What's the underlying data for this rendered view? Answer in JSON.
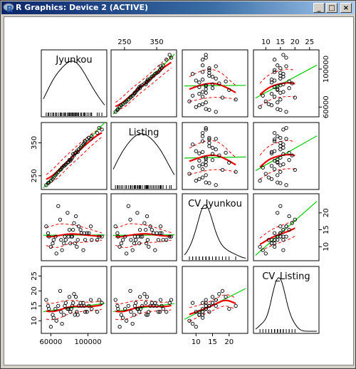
{
  "window": {
    "title": "R Graphics: Device 2 (ACTIVE)",
    "icon": "r-logo-icon",
    "buttons": {
      "minimize": "_",
      "maximize": "□",
      "close": "×"
    },
    "button_icons": [
      "minimize-icon",
      "maximize-icon",
      "close-icon"
    ]
  },
  "chart_data": {
    "type": "scatter",
    "title": "",
    "variables": [
      {
        "name": "Jyunkou",
        "ticks": [
          60000,
          100000
        ],
        "axis_tick_labels": [
          "60000",
          "100000"
        ],
        "range": [
          52000,
          118000
        ],
        "values": [
          104000,
          99000,
          95000,
          112000,
          90000,
          86000,
          83000,
          80000,
          78000,
          76000,
          88000,
          93000,
          85000,
          82000,
          74000,
          72000,
          84000,
          97000,
          101000,
          70000,
          68000,
          65000,
          63000,
          60000,
          57000,
          55000,
          79000,
          81000,
          89000,
          92000,
          87000,
          75000,
          71000,
          66000,
          62000,
          58000,
          96000,
          103000,
          110000,
          115000
        ]
      },
      {
        "name": "Listing",
        "ticks": [
          250,
          350
        ],
        "axis_tick_labels": [
          "250",
          "350"
        ],
        "range": [
          215,
          405
        ],
        "values": [
          370,
          360,
          345,
          395,
          330,
          318,
          305,
          298,
          290,
          285,
          325,
          340,
          312,
          300,
          280,
          275,
          316,
          355,
          365,
          268,
          262,
          252,
          245,
          235,
          228,
          222,
          292,
          296,
          322,
          335,
          320,
          282,
          270,
          256,
          240,
          230,
          350,
          362,
          380,
          390
        ]
      },
      {
        "name": "CV_Jyunkou",
        "ticks": [
          10,
          15,
          20
        ],
        "axis_tick_labels": [
          "10",
          "15",
          "20"
        ],
        "range": [
          6.5,
          25
        ],
        "values": [
          12,
          14,
          9,
          13,
          16,
          11,
          13,
          15,
          20,
          12,
          10,
          14,
          17,
          13,
          11,
          9,
          15,
          12,
          14,
          18,
          22,
          13,
          12,
          10,
          14,
          16,
          13,
          11,
          12,
          15,
          19,
          13,
          12,
          8,
          11,
          13,
          14,
          16,
          12,
          13
        ]
      },
      {
        "name": "CV_Listing",
        "ticks": [
          10,
          15,
          20,
          25
        ],
        "axis_tick_labels": [
          "10",
          "15",
          "20",
          "25"
        ],
        "range": [
          6.5,
          27.5
        ],
        "values": [
          14,
          13,
          16,
          17,
          15,
          12,
          15,
          18,
          14,
          16,
          13,
          15,
          19,
          14,
          12,
          9,
          16,
          13,
          15,
          20,
          15,
          14,
          11,
          8,
          15,
          17,
          14,
          13,
          12,
          16,
          18,
          15,
          13,
          10,
          12,
          14,
          15,
          17,
          13,
          16
        ]
      }
    ],
    "panels": "pairs-with-density-diagonal",
    "point_style": "open-circle",
    "colors": {
      "smooth": "#ee0000",
      "band": "#ee0000",
      "linear": "#00cc00",
      "points": "#000000",
      "axis": "#000000"
    },
    "grid": false
  }
}
